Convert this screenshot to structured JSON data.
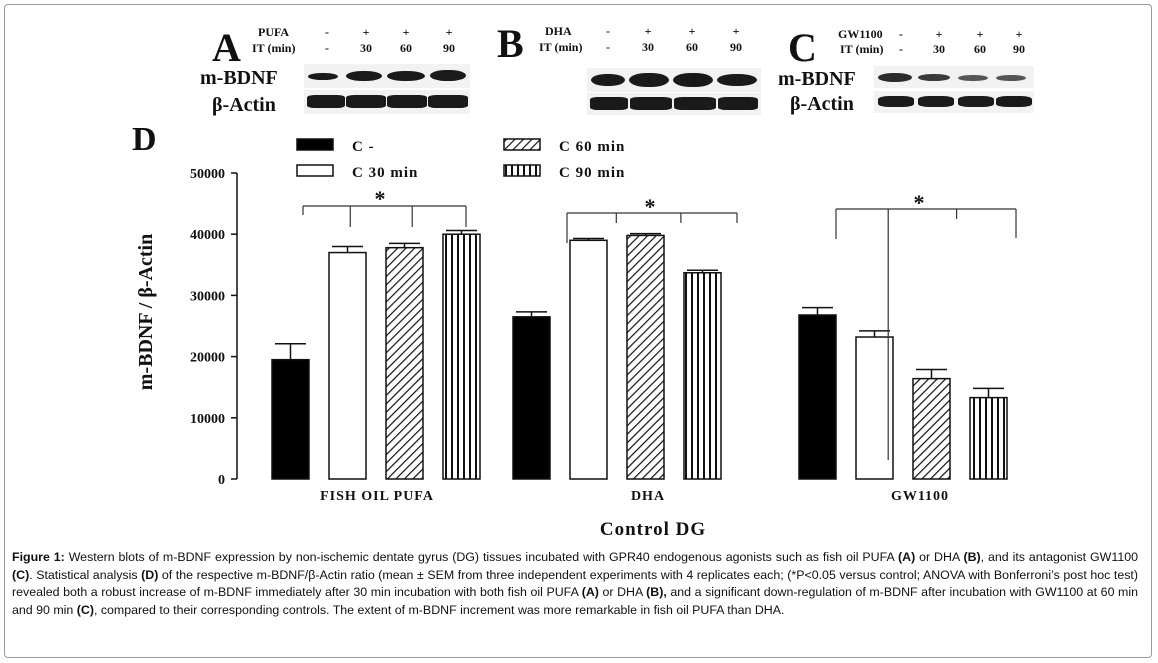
{
  "blots": {
    "A": {
      "letter": "A",
      "treatment": "PUFA",
      "it_label": "IT (min)",
      "treat_signs": [
        "-",
        "+",
        "+",
        "+"
      ],
      "it_values": [
        "-",
        "30",
        "60",
        "90"
      ],
      "row1": "m-BDNF",
      "row2": "β-Actin"
    },
    "B": {
      "letter": "B",
      "treatment": "DHA",
      "it_label": "IT (min)",
      "treat_signs": [
        "-",
        "+",
        "+",
        "+"
      ],
      "it_values": [
        "-",
        "30",
        "60",
        "90"
      ]
    },
    "C": {
      "letter": "C",
      "treatment": "GW1100",
      "it_label": "IT (min)",
      "treat_signs": [
        "-",
        "+",
        "+",
        "+"
      ],
      "it_values": [
        "-",
        "30",
        "60",
        "90"
      ],
      "row1": "m-BDNF",
      "row2": "β-Actin"
    }
  },
  "chart_data": {
    "type": "bar",
    "panel_letter": "D",
    "categories": [
      "FISH OIL PUFA",
      "DHA",
      "GW1100"
    ],
    "series": [
      {
        "name": "C -",
        "pattern": "solid",
        "values": [
          19500,
          26500,
          26800
        ],
        "errors": [
          2600,
          800,
          1200
        ]
      },
      {
        "name": "C 30 min",
        "pattern": "white",
        "values": [
          37000,
          39000,
          23200
        ],
        "errors": [
          1000,
          300,
          1000
        ]
      },
      {
        "name": "C 60 min",
        "pattern": "diagonal",
        "values": [
          37800,
          39800,
          16400
        ],
        "errors": [
          700,
          300,
          1500
        ]
      },
      {
        "name": "C 90 min",
        "pattern": "vertical",
        "values": [
          40000,
          33700,
          13300
        ],
        "errors": [
          600,
          400,
          1500
        ]
      }
    ],
    "ylabel": "m-BDNF / β-Actin",
    "xlabel": "Control DG",
    "ylim": [
      0,
      50000
    ],
    "yticks": [
      0,
      10000,
      20000,
      30000,
      40000,
      50000
    ],
    "significance": [
      {
        "group": "FISH OIL PUFA",
        "label": "*"
      },
      {
        "group": "DHA",
        "label": "*"
      },
      {
        "group": "GW1100",
        "label": "*"
      }
    ],
    "legend_position": "top",
    "grid": false
  },
  "caption": {
    "fig_label": "Figure 1:",
    "t1": " Western blots of m-BDNF expression by non-ischemic dentate gyrus (DG) tissues incubated with GPR40 endogenous agonists such as fish oil PUFA ",
    "A1": "(A)",
    "t2": " or DHA ",
    "B1": "(B)",
    "t3": ", and its antagonist GW1100 ",
    "C1": "(C)",
    "t4": ". Statistical analysis ",
    "D1": "(D)",
    "t5": " of the respective m-BDNF/β-Actin ratio (mean ± SEM from three independent experiments with 4 replicates each; (*P<0.05 versus control; ANOVA with Bonferroni’s post hoc test) revealed both a robust increase of m-BDNF immediately after 30 min incubation with both fish oil PUFA ",
    "A2": "(A)",
    "t6": " or DHA ",
    "B2": "(B),",
    "t7": " and a significant down-regulation of m-BDNF after incubation with GW1100 at 60 min and 90 min ",
    "C2": "(C)",
    "t8": ", compared to their corresponding controls. The extent of m-BDNF increment was more remarkable in fish oil PUFA than DHA."
  }
}
